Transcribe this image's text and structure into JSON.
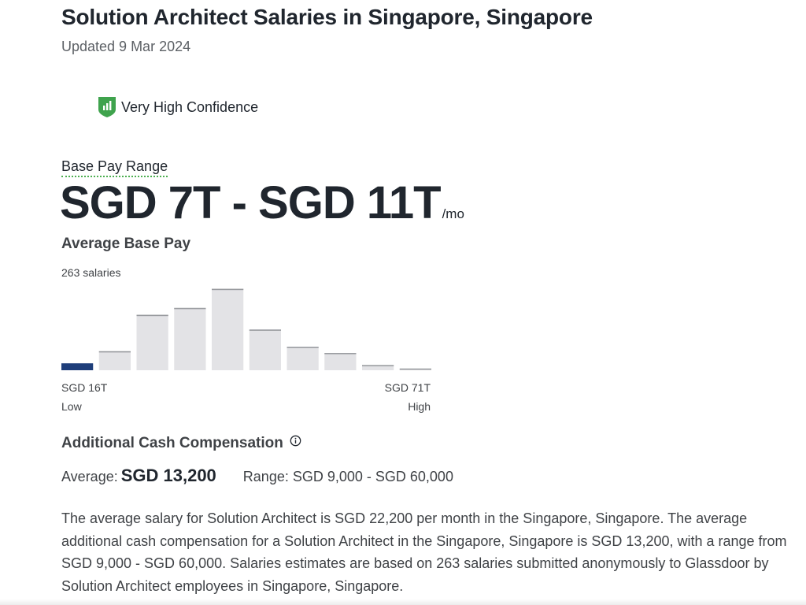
{
  "header": {
    "title": "Solution Architect Salaries in Singapore, Singapore",
    "updated": "Updated 9 Mar 2024"
  },
  "confidence": {
    "label": "Very High Confidence",
    "icon": "shield-bars-icon",
    "color": "#3fa34d"
  },
  "base_pay": {
    "label": "Base Pay Range",
    "range": "SGD 7T - SGD 11T",
    "period": "/mo"
  },
  "average_base_pay": {
    "heading": "Average Base Pay",
    "count": "263 salaries",
    "low_value": "SGD 16T",
    "high_value": "SGD 71T",
    "low_label": "Low",
    "high_label": "High"
  },
  "chart_data": {
    "type": "bar",
    "title": "Average Base Pay",
    "categories": [
      "1",
      "2",
      "3",
      "4",
      "5",
      "6",
      "7",
      "8",
      "9",
      "10"
    ],
    "values": [
      8,
      22,
      64,
      72,
      94,
      47,
      27,
      20,
      6,
      2
    ],
    "highlight_index": 0,
    "highlight_color": "#1e3e7a",
    "bar_color": "#e3e3e6",
    "bar_top_color": "#9a9ca0",
    "ylim": [
      0,
      100
    ]
  },
  "additional_cash": {
    "heading": "Additional Cash Compensation",
    "info_icon": "info-icon",
    "average_label": "Average:",
    "average_value": "SGD 13,200",
    "range": "Range: SGD 9,000 - SGD 60,000"
  },
  "summary": "The average salary for Solution Architect is SGD 22,200 per month in the Singapore, Singapore. The average additional cash compensation for a Solution Architect in the Singapore, Singapore is SGD 13,200, with a range from SGD 9,000 - SGD 60,000. Salaries estimates are based on 263 salaries submitted anonymously to Glassdoor by Solution Architect employees in Singapore, Singapore."
}
